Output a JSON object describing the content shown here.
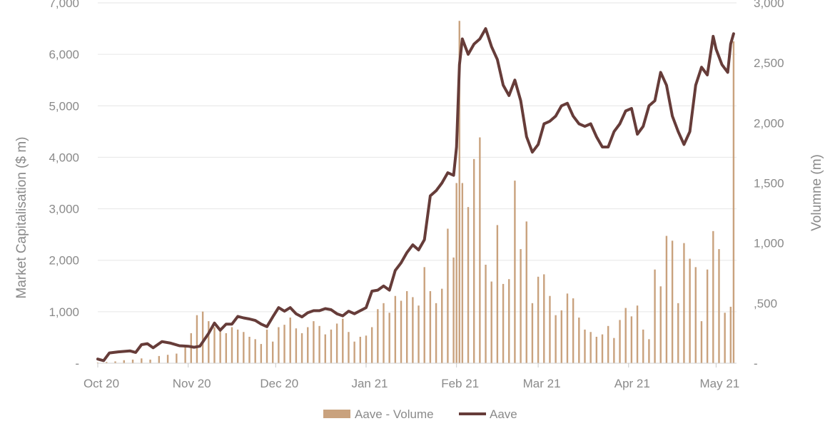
{
  "chart_data": {
    "type": "bar+line",
    "title": "",
    "y_left": {
      "label": "Market Capitalisation ($ m)",
      "min": 0,
      "max": 7000,
      "ticks": [
        {
          "value": 0,
          "label": "-"
        },
        {
          "value": 1000,
          "label": "1,000"
        },
        {
          "value": 2000,
          "label": "2,000"
        },
        {
          "value": 3000,
          "label": "3,000"
        },
        {
          "value": 4000,
          "label": "4,000"
        },
        {
          "value": 5000,
          "label": "5,000"
        },
        {
          "value": 6000,
          "label": "6,000"
        },
        {
          "value": 7000,
          "label": "7,000"
        }
      ]
    },
    "y_right": {
      "label": "Volumne (m)",
      "min": 0,
      "max": 3000,
      "ticks": [
        {
          "value": 0,
          "label": "-"
        },
        {
          "value": 500,
          "label": ",500"
        },
        {
          "value": 1000,
          "label": "1,000"
        },
        {
          "value": 1500,
          "label": "1,500"
        },
        {
          "value": 2000,
          "label": "2,000"
        },
        {
          "value": 2500,
          "label": "2,500"
        },
        {
          "value": 3000,
          "label": "3,000"
        }
      ]
    },
    "x_axis": {
      "start_date": "2020-10-01",
      "end_date": "2021-05-08",
      "ticks": [
        {
          "date": "2020-10-01",
          "label": "Oct 20"
        },
        {
          "date": "2020-11-01",
          "label": "Nov 20"
        },
        {
          "date": "2020-12-01",
          "label": "Dec 20"
        },
        {
          "date": "2021-01-01",
          "label": "Jan 21"
        },
        {
          "date": "2021-02-01",
          "label": "Feb 21"
        },
        {
          "date": "2021-03-01",
          "label": "Mar 21"
        },
        {
          "date": "2021-04-01",
          "label": "Apr 21"
        },
        {
          "date": "2021-05-01",
          "label": "May 21"
        }
      ]
    },
    "legend_position": "bottom-center",
    "grid": "horizontal",
    "series": [
      {
        "name": "Aave - Volume",
        "type": "bar",
        "axis": "right",
        "color": "#c9a27e",
        "points": [
          [
            "2020-10-01",
            5
          ],
          [
            "2020-10-04",
            10
          ],
          [
            "2020-10-07",
            15
          ],
          [
            "2020-10-10",
            25
          ],
          [
            "2020-10-13",
            30
          ],
          [
            "2020-10-16",
            40
          ],
          [
            "2020-10-19",
            30
          ],
          [
            "2020-10-22",
            60
          ],
          [
            "2020-10-25",
            70
          ],
          [
            "2020-10-28",
            80
          ],
          [
            "2020-10-31",
            150
          ],
          [
            "2020-11-02",
            250
          ],
          [
            "2020-11-04",
            400
          ],
          [
            "2020-11-06",
            430
          ],
          [
            "2020-11-08",
            350
          ],
          [
            "2020-11-10",
            300
          ],
          [
            "2020-11-12",
            280
          ],
          [
            "2020-11-14",
            250
          ],
          [
            "2020-11-16",
            300
          ],
          [
            "2020-11-18",
            280
          ],
          [
            "2020-11-20",
            260
          ],
          [
            "2020-11-22",
            220
          ],
          [
            "2020-11-24",
            200
          ],
          [
            "2020-11-26",
            160
          ],
          [
            "2020-11-28",
            280
          ],
          [
            "2020-11-30",
            180
          ],
          [
            "2020-12-02",
            300
          ],
          [
            "2020-12-04",
            320
          ],
          [
            "2020-12-06",
            380
          ],
          [
            "2020-12-08",
            290
          ],
          [
            "2020-12-10",
            250
          ],
          [
            "2020-12-12",
            300
          ],
          [
            "2020-12-14",
            350
          ],
          [
            "2020-12-16",
            310
          ],
          [
            "2020-12-18",
            240
          ],
          [
            "2020-12-20",
            280
          ],
          [
            "2020-12-22",
            330
          ],
          [
            "2020-12-24",
            370
          ],
          [
            "2020-12-26",
            260
          ],
          [
            "2020-12-28",
            180
          ],
          [
            "2020-12-30",
            220
          ],
          [
            "2021-01-01",
            230
          ],
          [
            "2021-01-03",
            300
          ],
          [
            "2021-01-05",
            450
          ],
          [
            "2021-01-07",
            500
          ],
          [
            "2021-01-09",
            420
          ],
          [
            "2021-01-11",
            560
          ],
          [
            "2021-01-13",
            520
          ],
          [
            "2021-01-15",
            600
          ],
          [
            "2021-01-17",
            550
          ],
          [
            "2021-01-19",
            480
          ],
          [
            "2021-01-21",
            800
          ],
          [
            "2021-01-23",
            600
          ],
          [
            "2021-01-25",
            500
          ],
          [
            "2021-01-27",
            620
          ],
          [
            "2021-01-29",
            1120
          ],
          [
            "2021-01-31",
            880
          ],
          [
            "2021-02-01",
            1500
          ],
          [
            "2021-02-02",
            2850
          ],
          [
            "2021-02-03",
            1500
          ],
          [
            "2021-02-05",
            1300
          ],
          [
            "2021-02-07",
            1700
          ],
          [
            "2021-02-09",
            1880
          ],
          [
            "2021-02-11",
            820
          ],
          [
            "2021-02-13",
            680
          ],
          [
            "2021-02-15",
            1150
          ],
          [
            "2021-02-17",
            660
          ],
          [
            "2021-02-19",
            700
          ],
          [
            "2021-02-21",
            1520
          ],
          [
            "2021-02-23",
            950
          ],
          [
            "2021-02-25",
            1180
          ],
          [
            "2021-02-27",
            500
          ],
          [
            "2021-03-01",
            720
          ],
          [
            "2021-03-03",
            740
          ],
          [
            "2021-03-05",
            560
          ],
          [
            "2021-03-07",
            400
          ],
          [
            "2021-03-09",
            440
          ],
          [
            "2021-03-11",
            580
          ],
          [
            "2021-03-13",
            540
          ],
          [
            "2021-03-15",
            380
          ],
          [
            "2021-03-17",
            280
          ],
          [
            "2021-03-19",
            260
          ],
          [
            "2021-03-21",
            220
          ],
          [
            "2021-03-23",
            240
          ],
          [
            "2021-03-25",
            310
          ],
          [
            "2021-03-27",
            210
          ],
          [
            "2021-03-29",
            360
          ],
          [
            "2021-03-31",
            460
          ],
          [
            "2021-04-02",
            390
          ],
          [
            "2021-04-04",
            480
          ],
          [
            "2021-04-06",
            280
          ],
          [
            "2021-04-08",
            200
          ],
          [
            "2021-04-10",
            780
          ],
          [
            "2021-04-12",
            640
          ],
          [
            "2021-04-14",
            1060
          ],
          [
            "2021-04-16",
            1020
          ],
          [
            "2021-04-18",
            500
          ],
          [
            "2021-04-20",
            1000
          ],
          [
            "2021-04-22",
            870
          ],
          [
            "2021-04-24",
            800
          ],
          [
            "2021-04-26",
            350
          ],
          [
            "2021-04-28",
            780
          ],
          [
            "2021-04-30",
            1100
          ],
          [
            "2021-05-02",
            950
          ],
          [
            "2021-05-04",
            420
          ],
          [
            "2021-05-06",
            470
          ],
          [
            "2021-05-07",
            2680
          ]
        ]
      },
      {
        "name": "Aave",
        "type": "line",
        "axis": "left",
        "color": "#663c39",
        "points": [
          [
            "2020-10-01",
            80
          ],
          [
            "2020-10-03",
            50
          ],
          [
            "2020-10-05",
            200
          ],
          [
            "2020-10-08",
            220
          ],
          [
            "2020-10-12",
            240
          ],
          [
            "2020-10-14",
            210
          ],
          [
            "2020-10-16",
            360
          ],
          [
            "2020-10-18",
            380
          ],
          [
            "2020-10-20",
            300
          ],
          [
            "2020-10-23",
            420
          ],
          [
            "2020-10-26",
            390
          ],
          [
            "2020-10-29",
            340
          ],
          [
            "2020-11-01",
            330
          ],
          [
            "2020-11-03",
            310
          ],
          [
            "2020-11-05",
            330
          ],
          [
            "2020-11-08",
            580
          ],
          [
            "2020-11-10",
            780
          ],
          [
            "2020-11-12",
            640
          ],
          [
            "2020-11-14",
            760
          ],
          [
            "2020-11-16",
            760
          ],
          [
            "2020-11-18",
            910
          ],
          [
            "2020-11-20",
            880
          ],
          [
            "2020-11-22",
            860
          ],
          [
            "2020-11-24",
            830
          ],
          [
            "2020-11-26",
            760
          ],
          [
            "2020-11-28",
            710
          ],
          [
            "2020-11-30",
            900
          ],
          [
            "2020-12-02",
            1080
          ],
          [
            "2020-12-04",
            1010
          ],
          [
            "2020-12-06",
            1080
          ],
          [
            "2020-12-08",
            960
          ],
          [
            "2020-12-10",
            900
          ],
          [
            "2020-12-12",
            980
          ],
          [
            "2020-12-14",
            1020
          ],
          [
            "2020-12-16",
            1020
          ],
          [
            "2020-12-18",
            1060
          ],
          [
            "2020-12-20",
            1040
          ],
          [
            "2020-12-22",
            960
          ],
          [
            "2020-12-24",
            920
          ],
          [
            "2020-12-26",
            1010
          ],
          [
            "2020-12-28",
            960
          ],
          [
            "2020-12-30",
            1020
          ],
          [
            "2021-01-01",
            1080
          ],
          [
            "2021-01-03",
            1400
          ],
          [
            "2021-01-05",
            1420
          ],
          [
            "2021-01-07",
            1500
          ],
          [
            "2021-01-09",
            1420
          ],
          [
            "2021-01-11",
            1800
          ],
          [
            "2021-01-13",
            1950
          ],
          [
            "2021-01-15",
            2150
          ],
          [
            "2021-01-17",
            2300
          ],
          [
            "2021-01-19",
            2200
          ],
          [
            "2021-01-21",
            2400
          ],
          [
            "2021-01-23",
            3250
          ],
          [
            "2021-01-25",
            3350
          ],
          [
            "2021-01-27",
            3500
          ],
          [
            "2021-01-29",
            3700
          ],
          [
            "2021-01-31",
            3650
          ],
          [
            "2021-02-01",
            4200
          ],
          [
            "2021-02-02",
            5800
          ],
          [
            "2021-02-03",
            6300
          ],
          [
            "2021-02-05",
            6000
          ],
          [
            "2021-02-07",
            6200
          ],
          [
            "2021-02-09",
            6300
          ],
          [
            "2021-02-11",
            6500
          ],
          [
            "2021-02-13",
            6150
          ],
          [
            "2021-02-15",
            5900
          ],
          [
            "2021-02-17",
            5400
          ],
          [
            "2021-02-19",
            5200
          ],
          [
            "2021-02-21",
            5500
          ],
          [
            "2021-02-23",
            5100
          ],
          [
            "2021-02-25",
            4400
          ],
          [
            "2021-02-27",
            4100
          ],
          [
            "2021-03-01",
            4250
          ],
          [
            "2021-03-03",
            4650
          ],
          [
            "2021-03-05",
            4700
          ],
          [
            "2021-03-07",
            4800
          ],
          [
            "2021-03-09",
            5000
          ],
          [
            "2021-03-11",
            5050
          ],
          [
            "2021-03-13",
            4800
          ],
          [
            "2021-03-15",
            4650
          ],
          [
            "2021-03-17",
            4600
          ],
          [
            "2021-03-19",
            4650
          ],
          [
            "2021-03-21",
            4400
          ],
          [
            "2021-03-23",
            4200
          ],
          [
            "2021-03-25",
            4200
          ],
          [
            "2021-03-27",
            4500
          ],
          [
            "2021-03-29",
            4650
          ],
          [
            "2021-03-31",
            4900
          ],
          [
            "2021-04-02",
            4950
          ],
          [
            "2021-04-04",
            4450
          ],
          [
            "2021-04-06",
            4600
          ],
          [
            "2021-04-08",
            5000
          ],
          [
            "2021-04-10",
            5100
          ],
          [
            "2021-04-12",
            5650
          ],
          [
            "2021-04-14",
            5400
          ],
          [
            "2021-04-16",
            4800
          ],
          [
            "2021-04-18",
            4500
          ],
          [
            "2021-04-20",
            4250
          ],
          [
            "2021-04-22",
            4500
          ],
          [
            "2021-04-24",
            5400
          ],
          [
            "2021-04-26",
            5750
          ],
          [
            "2021-04-28",
            5600
          ],
          [
            "2021-04-30",
            6350
          ],
          [
            "2021-05-01",
            6100
          ],
          [
            "2021-05-03",
            5800
          ],
          [
            "2021-05-05",
            5650
          ],
          [
            "2021-05-06",
            6200
          ],
          [
            "2021-05-07",
            6400
          ]
        ]
      }
    ]
  }
}
